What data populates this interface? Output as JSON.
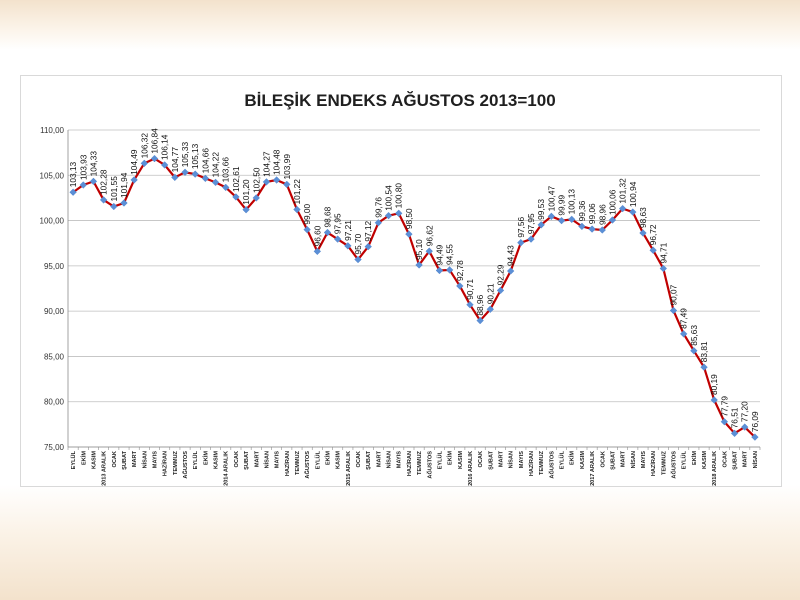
{
  "chart_data": {
    "type": "line",
    "title": "BİLEŞİK ENDEKS AĞUSTOS 2013=100",
    "xlabel": "",
    "ylabel": "",
    "ylim": [
      75,
      110
    ],
    "yticks": [
      "75,00",
      "80,00",
      "85,00",
      "90,00",
      "95,00",
      "100,00",
      "105,00",
      "110,00"
    ],
    "ytick_values": [
      75,
      80,
      85,
      90,
      95,
      100,
      105,
      110
    ],
    "grid": true,
    "categories": [
      "EYLÜL",
      "EKİM",
      "KASIM",
      "2013 ARALIK",
      "OCAK",
      "ŞUBAT",
      "MART",
      "NİSAN",
      "MAYIS",
      "HAZİRAN",
      "TEMMUZ",
      "AĞUSTOS",
      "EYLÜL",
      "EKİM",
      "KASIM",
      "2014 ARALIK",
      "OCAK",
      "ŞUBAT",
      "MART",
      "NİSAN",
      "MAYIS",
      "HAZİRAN",
      "TEMMUZ",
      "AĞUSTOS",
      "EYLÜL",
      "EKİM",
      "KASIM",
      "2015 ARALIK",
      "OCAK",
      "ŞUBAT",
      "MART",
      "NİSAN",
      "MAYIS",
      "HAZİRAN",
      "TEMMUZ",
      "AĞUSTOS",
      "EYLÜL",
      "EKİM",
      "KASIM",
      "2016 ARALIK",
      "OCAK",
      "ŞUBAT",
      "MART",
      "NİSAN",
      "MAYIS",
      "HAZİRAN",
      "TEMMUZ",
      "AĞUSTOS",
      "EYLÜL",
      "EKİM",
      "KASIM",
      "2017 ARALIK",
      "OCAK",
      "ŞUBAT",
      "MART",
      "NİSAN",
      "MAYIS",
      "HAZİRAN",
      "TEMMUZ",
      "AĞUSTOS",
      "EYLÜL",
      "EKİM",
      "KASIM",
      "2018 ARALIK",
      "OCAK",
      "ŞUBAT",
      "MART",
      "NİSAN"
    ],
    "values": [
      103.13,
      103.93,
      104.33,
      102.28,
      101.55,
      101.94,
      104.49,
      106.32,
      106.84,
      106.14,
      104.77,
      105.33,
      105.13,
      104.66,
      104.22,
      103.66,
      102.61,
      101.2,
      102.5,
      104.27,
      104.48,
      103.99,
      101.22,
      99.0,
      96.6,
      98.68,
      97.95,
      97.21,
      95.7,
      97.12,
      99.76,
      100.54,
      100.8,
      98.5,
      95.1,
      96.62,
      94.49,
      94.55,
      92.78,
      90.71,
      88.96,
      90.21,
      92.29,
      94.43,
      97.56,
      97.95,
      99.53,
      100.47,
      99.99,
      100.13,
      99.36,
      99.06,
      98.96,
      100.06,
      101.32,
      100.94,
      98.63,
      96.72,
      94.71,
      90.07,
      87.49,
      85.63,
      83.81,
      80.19,
      77.79,
      76.51,
      77.2,
      76.09
    ],
    "labels": [
      "103,13",
      "103,93",
      "104,33",
      "102,28",
      "101,55",
      "101,94",
      "104,49",
      "106,32",
      "106,84",
      "106,14",
      "104,77",
      "105,33",
      "105,13",
      "104,66",
      "104,22",
      "103,66",
      "102,61",
      "101,20",
      "102,50",
      "104,27",
      "104,48",
      "103,99",
      "101,22",
      "99,00",
      "96,60",
      "98,68",
      "97,95",
      "97,21",
      "95,70",
      "97,12",
      "99,76",
      "100,54",
      "100,80",
      "98,50",
      "95,10",
      "96,62",
      "94,49",
      "94,55",
      "92,78",
      "90,71",
      "88,96",
      "90,21",
      "92,29",
      "94,43",
      "97,56",
      "97,95",
      "99,53",
      "100,47",
      "99,99",
      "100,13",
      "99,36",
      "99,06",
      "98,96",
      "100,06",
      "101,32",
      "100,94",
      "98,63",
      "96,72",
      "94,71",
      "90,07",
      "87,49",
      "85,63",
      "83,81",
      "80,19",
      "77,79",
      "76,51",
      "77,20",
      "76,09"
    ],
    "colors": {
      "line": "#c00000",
      "marker": "#5b8fd6",
      "grid": "#bfbfbf"
    }
  }
}
